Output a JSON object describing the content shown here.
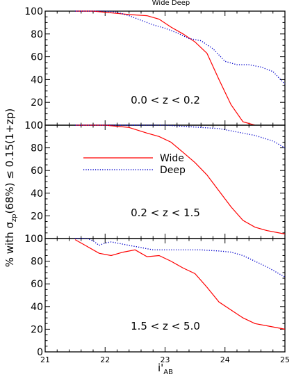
{
  "chart_data": {
    "type": "line",
    "title": "Wide Deep",
    "xlabel": "i'",
    "xlabel_sub": "AB",
    "ylabel_prefix": "% with σ",
    "ylabel_sub": "zp",
    "ylabel_suffix": "(68%) ≤ 0.15(1+zp)",
    "xlim": [
      21,
      25
    ],
    "ylim": [
      0,
      100
    ],
    "x_ticks": [
      "21",
      "22",
      "23",
      "24",
      "25"
    ],
    "y_ticks": [
      "0",
      "20",
      "40",
      "60",
      "80",
      "100"
    ],
    "grid": false,
    "legend": {
      "placement": "panel 2, upper-left",
      "entries": [
        {
          "name": "Wide",
          "color": "#ff0000",
          "style": "solid"
        },
        {
          "name": "Deep",
          "color": "#0000cc",
          "style": "dotted"
        }
      ]
    },
    "panels": [
      {
        "label": "0.0 < z < 0.2",
        "series": [
          {
            "name": "Wide",
            "color": "#ff0000",
            "style": "solid",
            "x": [
              21.5,
              21.8,
              22.0,
              22.2,
              22.4,
              22.7,
              22.9,
              23.1,
              23.3,
              23.5,
              23.7,
              23.9,
              24.1,
              24.3,
              24.5
            ],
            "y": [
              100,
              100,
              99,
              98,
              97,
              96,
              93,
              86,
              80,
              73,
              63,
              40,
              18,
              3,
              0
            ]
          },
          {
            "name": "Deep",
            "color": "#0000cc",
            "style": "dotted",
            "x": [
              21.5,
              21.8,
              22.0,
              22.2,
              22.4,
              22.6,
              22.8,
              23.0,
              23.2,
              23.4,
              23.6,
              23.8,
              24.0,
              24.2,
              24.4,
              24.6,
              24.8,
              25.0
            ],
            "y": [
              100,
              100,
              100,
              99,
              96,
              92,
              88,
              85,
              81,
              76,
              74,
              67,
              56,
              53,
              53,
              51,
              47,
              36
            ]
          }
        ]
      },
      {
        "label": "0.2 < z < 1.5",
        "series": [
          {
            "name": "Wide",
            "color": "#ff0000",
            "style": "solid",
            "x": [
              21.5,
              21.8,
              22.0,
              22.2,
              22.4,
              22.7,
              22.9,
              23.1,
              23.3,
              23.5,
              23.7,
              23.9,
              24.1,
              24.3,
              24.5,
              24.7,
              25.0
            ],
            "y": [
              100,
              100,
              100,
              99,
              98,
              93,
              90,
              85,
              76,
              67,
              56,
              42,
              28,
              16,
              10,
              7,
              4
            ]
          },
          {
            "name": "Deep",
            "color": "#0000cc",
            "style": "dotted",
            "x": [
              21.5,
              22.0,
              22.5,
              23.0,
              23.3,
              23.6,
              23.9,
              24.2,
              24.5,
              24.8,
              25.0
            ],
            "y": [
              100,
              100,
              100,
              100,
              99,
              98,
              97,
              94,
              91,
              86,
              80
            ]
          }
        ]
      },
      {
        "label": "1.5 < z < 5.0",
        "series": [
          {
            "name": "Wide",
            "color": "#ff0000",
            "style": "solid",
            "x": [
              21.5,
              21.7,
              21.9,
              22.1,
              22.3,
              22.5,
              22.7,
              22.9,
              23.1,
              23.3,
              23.5,
              23.7,
              23.9,
              24.1,
              24.3,
              24.5,
              24.7,
              25.0
            ],
            "y": [
              99,
              93,
              87,
              85,
              88,
              90,
              84,
              85,
              80,
              74,
              69,
              57,
              44,
              37,
              30,
              25,
              23,
              20
            ]
          },
          {
            "name": "Deep",
            "color": "#0000cc",
            "style": "dotted",
            "x": [
              21.5,
              21.7,
              21.8,
              21.9,
              22.0,
              22.1,
              22.2,
              22.4,
              22.6,
              22.8,
              23.0,
              23.3,
              23.6,
              23.9,
              24.1,
              24.3,
              24.5,
              24.7,
              25.0
            ],
            "y": [
              100,
              100,
              98,
              94,
              96,
              97,
              96,
              94,
              92,
              90,
              90,
              90,
              90,
              89,
              88,
              85,
              80,
              75,
              66
            ]
          }
        ]
      }
    ]
  }
}
